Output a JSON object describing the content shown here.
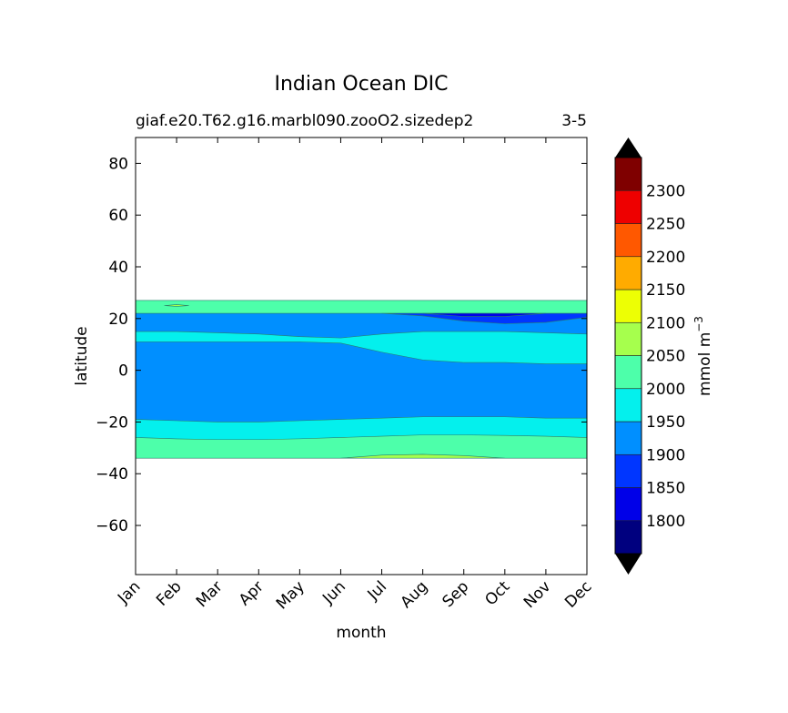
{
  "chart_data": {
    "type": "contour",
    "title": "Indian Ocean DIC",
    "subtitle_left": "giaf.e20.T62.g16.marbl090.zooO2.sizedep2",
    "subtitle_right": "3-5",
    "xlabel": "month",
    "ylabel": "latitude",
    "x_ticks": [
      "Jan",
      "Feb",
      "Mar",
      "Apr",
      "May",
      "Jun",
      "Jul",
      "Aug",
      "Sep",
      "Oct",
      "Nov",
      "Dec"
    ],
    "xlim": [
      0,
      11
    ],
    "ylim": [
      -79,
      90
    ],
    "y_ticks": [
      80,
      60,
      40,
      20,
      0,
      -20,
      -40,
      -60
    ],
    "y_tick_labels": [
      "80",
      "60",
      "40",
      "20",
      "0",
      "−20",
      "−40",
      "−60"
    ],
    "colorbar": {
      "label": "mmol m",
      "label_sup": "−3",
      "levels": [
        1750,
        1800,
        1850,
        1900,
        1950,
        2000,
        2050,
        2100,
        2150,
        2200,
        2250,
        2300,
        2350
      ],
      "tick_labels": [
        "1800",
        "1850",
        "1900",
        "1950",
        "2000",
        "2050",
        "2100",
        "2150",
        "2200",
        "2250",
        "2300"
      ],
      "colors": [
        "#00007f",
        "#0000e8",
        "#0036ff",
        "#008fff",
        "#04f0ed",
        "#4dffaa",
        "#a6ff4d",
        "#edff04",
        "#ffab00",
        "#ff5800",
        "#ee0000",
        "#7f0000"
      ],
      "extend": "both"
    },
    "regions": [
      {
        "name": "base-2000-2050",
        "level": "2000-2050",
        "color": "#4dffaa",
        "x": [
          0,
          11
        ],
        "top": [
          27,
          27
        ],
        "bottom": [
          -34,
          -34
        ]
      },
      {
        "name": "south-1950-2000",
        "level": "1950-2000",
        "color": "#04f0ed",
        "x": [
          0,
          1,
          2,
          3,
          4,
          5,
          6,
          7,
          8,
          9,
          10,
          11
        ],
        "top": [
          22,
          22,
          22,
          22,
          22,
          22,
          22,
          22,
          22,
          22,
          22,
          22
        ],
        "bottom": [
          -26,
          -26.5,
          -26.8,
          -26.8,
          -26.5,
          -26,
          -25.5,
          -25,
          -25,
          -25.2,
          -25.5,
          -26
        ]
      },
      {
        "name": "main-1900-1950",
        "level": "1900-1950",
        "color": "#008fff",
        "x": [
          0,
          1,
          2,
          3,
          4,
          5,
          6,
          7,
          8,
          9,
          10,
          11
        ],
        "top": [
          22,
          22,
          22,
          22,
          22,
          22,
          22,
          22,
          22,
          22,
          22,
          22
        ],
        "bottom": [
          -19,
          -19.5,
          -20,
          -20,
          -19.5,
          -19,
          -18.5,
          -18,
          -18,
          -18,
          -18.5,
          -18.5
        ]
      },
      {
        "name": "north-1950-2000",
        "level": "1950-2000",
        "color": "#04f0ed",
        "x": [
          0,
          1,
          2,
          3,
          4,
          5,
          6,
          7,
          8,
          9,
          10,
          11
        ],
        "top": [
          15,
          15,
          14.5,
          14,
          13,
          12.5,
          14,
          15,
          15,
          15,
          14.5,
          14
        ],
        "bottom": [
          11,
          11,
          11,
          11,
          11,
          10.5,
          7,
          4,
          3,
          3,
          2.5,
          2.5
        ]
      },
      {
        "name": "north-1850-1900",
        "level": "1850-1900",
        "color": "#0036ff",
        "x": [
          6,
          7,
          8,
          9,
          10,
          11
        ],
        "top": [
          22,
          22,
          22,
          22,
          22,
          22
        ],
        "bottom": [
          22,
          21,
          19,
          18,
          18.5,
          20.5
        ]
      },
      {
        "name": "north-1800-1850",
        "level": "1800-1850",
        "color": "#0000e8",
        "x": [
          7,
          8,
          9,
          10
        ],
        "top": [
          22,
          22,
          22,
          22
        ],
        "bottom": [
          22,
          20.8,
          20.8,
          22
        ]
      },
      {
        "name": "south-2050-2100",
        "level": "2050-2100",
        "color": "#a6ff4d",
        "x": [
          5,
          6,
          7,
          8,
          9
        ],
        "top": [
          -34,
          -32.8,
          -32.5,
          -33,
          -34
        ],
        "bottom": [
          -34,
          -34,
          -34,
          -34,
          -34
        ]
      },
      {
        "name": "feb-2050-2100",
        "level": "2050-2100",
        "color": "#a6ff4d",
        "x": [
          0.7,
          1,
          1.3
        ],
        "top": [
          25,
          25.4,
          25
        ],
        "bottom": [
          25,
          24.7,
          25
        ]
      }
    ]
  }
}
